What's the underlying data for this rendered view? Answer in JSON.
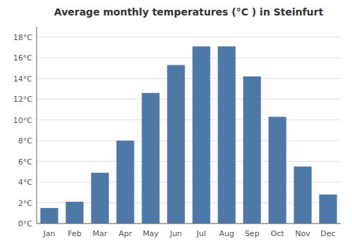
{
  "chart_data": {
    "type": "bar",
    "title": "Average monthly temperatures (°C ) in Steinfurt",
    "categories": [
      "Jan",
      "Feb",
      "Mar",
      "Apr",
      "May",
      "Jun",
      "Jul",
      "Aug",
      "Sep",
      "Oct",
      "Nov",
      "Dec"
    ],
    "values": [
      1.5,
      2.1,
      4.9,
      8.0,
      12.6,
      15.3,
      17.1,
      17.1,
      14.2,
      10.3,
      5.5,
      2.8
    ],
    "ylim": [
      0,
      19
    ],
    "yticks": [
      {
        "value": 0,
        "label": "0°C"
      },
      {
        "value": 2,
        "label": "2°C"
      },
      {
        "value": 4,
        "label": "4°C"
      },
      {
        "value": 6,
        "label": "6°C"
      },
      {
        "value": 8,
        "label": "8°C"
      },
      {
        "value": 10,
        "label": "10°C"
      },
      {
        "value": 12,
        "label": "12°C"
      },
      {
        "value": 14,
        "label": "14°C"
      },
      {
        "value": 16,
        "label": "16°C"
      },
      {
        "value": 18,
        "label": "18°C"
      }
    ],
    "grid": true
  }
}
